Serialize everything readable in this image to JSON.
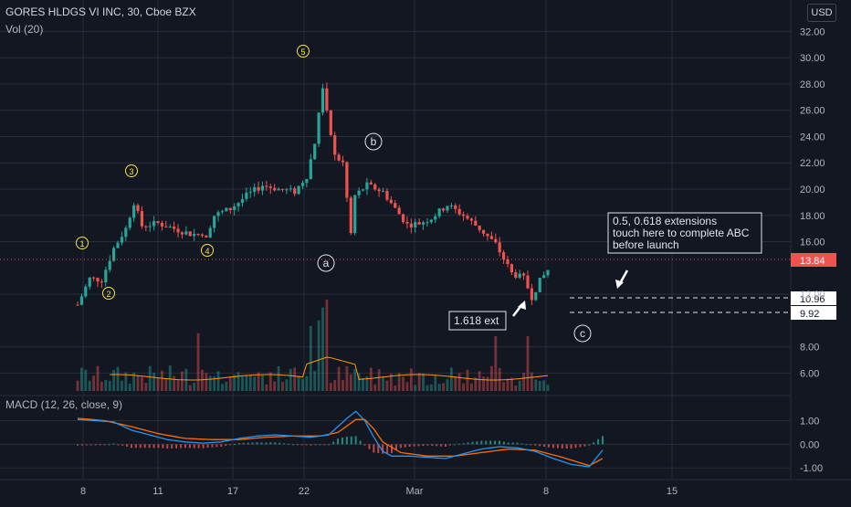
{
  "header": {
    "symbol": "GORES HLDGS VI INC, 30, Cboe BZX",
    "volume_label": "Vol (20)",
    "macd_label": "MACD (12, 26, close, 9)",
    "currency": "USD"
  },
  "colors": {
    "background": "#131722",
    "grid": "#2a2e39",
    "up": "#26a69a",
    "down": "#ef5350",
    "wave_label": "#f5e642",
    "macd_line": "#2196f3",
    "signal_line": "#ff6d00",
    "vol_ma": "#ff9800",
    "price_line": "#ef5350"
  },
  "annotations": {
    "wave_1": "1",
    "wave_2": "2",
    "wave_3": "3",
    "wave_4": "4",
    "wave_5": "5",
    "wave_a": "a",
    "wave_b": "b",
    "wave_c": "c",
    "note_line1": "0.5, 0.618 extensions",
    "note_line2": "touch here to complete ABC",
    "note_line3": "before launch",
    "ext_label": "1.618 ext",
    "level_1": "10.96",
    "level_2": "9.92",
    "last_price": "13.84"
  },
  "chart_data": {
    "type": "candlestick",
    "x_tick_labels": [
      "8",
      "11",
      "17",
      "22",
      "Mar",
      "8",
      "15"
    ],
    "y_tick_labels": [
      "32.00",
      "30.00",
      "28.00",
      "26.00",
      "24.00",
      "22.00",
      "20.00",
      "18.00",
      "16.00",
      "12.00",
      "8.00",
      "6.00"
    ],
    "ylim": [
      4.5,
      33
    ],
    "macd_tick_labels": [
      "1.00",
      "0.00",
      "-1.00"
    ],
    "macd_ylim": [
      -1.3,
      1.6
    ],
    "last_price": 13.84,
    "levels": [
      10.96,
      9.92
    ],
    "price_path": [
      [
        0,
        11.2
      ],
      [
        3,
        13.2
      ],
      [
        6,
        13.1
      ],
      [
        9,
        15.5
      ],
      [
        12,
        17.0
      ],
      [
        14,
        19.0
      ],
      [
        16,
        17.2
      ],
      [
        20,
        17.4
      ],
      [
        24,
        17.0
      ],
      [
        28,
        16.6
      ],
      [
        32,
        16.5
      ],
      [
        34,
        18.0
      ],
      [
        38,
        18.5
      ],
      [
        42,
        19.5
      ],
      [
        46,
        20.3
      ],
      [
        50,
        20.0
      ],
      [
        54,
        19.8
      ],
      [
        57,
        21.0
      ],
      [
        59,
        23.5
      ],
      [
        61,
        27.8
      ],
      [
        62,
        25.8
      ],
      [
        64,
        22.5
      ],
      [
        66,
        22.0
      ],
      [
        68,
        16.6
      ],
      [
        69,
        19.5
      ],
      [
        72,
        20.3
      ],
      [
        76,
        19.8
      ],
      [
        79,
        18.5
      ],
      [
        82,
        17.3
      ],
      [
        85,
        17.4
      ],
      [
        88,
        17.8
      ],
      [
        92,
        18.8
      ],
      [
        96,
        18.0
      ],
      [
        100,
        17.0
      ],
      [
        104,
        15.8
      ],
      [
        108,
        13.6
      ],
      [
        111,
        13.2
      ],
      [
        113,
        11.8
      ],
      [
        115,
        13.0
      ],
      [
        117,
        13.84
      ]
    ],
    "macd_path": [
      [
        0,
        1.05
      ],
      [
        4,
        1.0
      ],
      [
        8,
        0.95
      ],
      [
        12,
        0.6
      ],
      [
        16,
        0.4
      ],
      [
        20,
        0.2
      ],
      [
        24,
        0.1
      ],
      [
        28,
        0.05
      ],
      [
        32,
        0.1
      ],
      [
        36,
        0.25
      ],
      [
        40,
        0.35
      ],
      [
        44,
        0.4
      ],
      [
        48,
        0.35
      ],
      [
        52,
        0.3
      ],
      [
        56,
        0.4
      ],
      [
        60,
        1.1
      ],
      [
        62,
        1.4
      ],
      [
        64,
        1.0
      ],
      [
        66,
        0.3
      ],
      [
        68,
        -0.3
      ],
      [
        70,
        -0.5
      ],
      [
        74,
        -0.5
      ],
      [
        78,
        -0.55
      ],
      [
        82,
        -0.6
      ],
      [
        86,
        -0.4
      ],
      [
        90,
        -0.2
      ],
      [
        94,
        -0.1
      ],
      [
        98,
        -0.15
      ],
      [
        102,
        -0.3
      ],
      [
        106,
        -0.6
      ],
      [
        110,
        -0.85
      ],
      [
        114,
        -0.95
      ],
      [
        117,
        -0.25
      ]
    ],
    "signal_path": [
      [
        0,
        1.1
      ],
      [
        6,
        1.0
      ],
      [
        12,
        0.75
      ],
      [
        18,
        0.45
      ],
      [
        24,
        0.25
      ],
      [
        30,
        0.2
      ],
      [
        36,
        0.2
      ],
      [
        42,
        0.3
      ],
      [
        48,
        0.35
      ],
      [
        54,
        0.35
      ],
      [
        58,
        0.5
      ],
      [
        62,
        1.05
      ],
      [
        64,
        1.05
      ],
      [
        66,
        0.65
      ],
      [
        68,
        0.1
      ],
      [
        72,
        -0.35
      ],
      [
        78,
        -0.5
      ],
      [
        84,
        -0.5
      ],
      [
        90,
        -0.35
      ],
      [
        96,
        -0.2
      ],
      [
        102,
        -0.25
      ],
      [
        108,
        -0.55
      ],
      [
        114,
        -0.9
      ],
      [
        117,
        -0.6
      ]
    ]
  }
}
